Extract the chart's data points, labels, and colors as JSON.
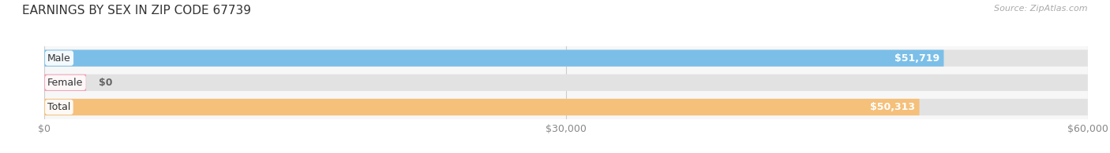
{
  "title": "EARNINGS BY SEX IN ZIP CODE 67739",
  "source": "Source: ZipAtlas.com",
  "categories": [
    "Male",
    "Female",
    "Total"
  ],
  "values": [
    51719,
    0,
    50313
  ],
  "bar_colors": [
    "#7bbfe8",
    "#f0a0b5",
    "#f5c07a"
  ],
  "value_labels": [
    "$51,719",
    "$0",
    "$50,313"
  ],
  "xlim": [
    0,
    60000
  ],
  "xticks": [
    0,
    30000,
    60000
  ],
  "xticklabels": [
    "$0",
    "$30,000",
    "$60,000"
  ],
  "bg_bar_color": "#e2e2e2",
  "title_fontsize": 11,
  "tick_fontsize": 9,
  "label_fontsize": 9,
  "value_fontsize": 9,
  "bar_height": 0.68,
  "female_small_val": 2400
}
